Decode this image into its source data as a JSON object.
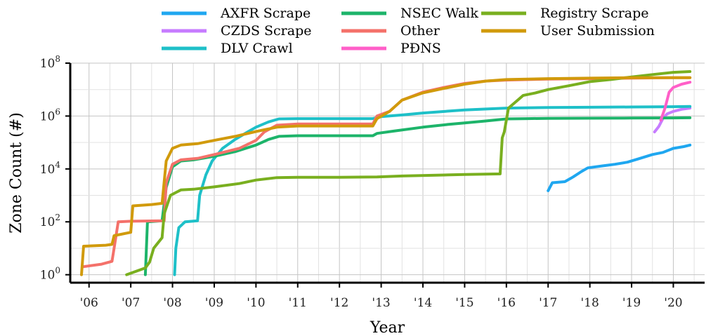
{
  "chart_data": {
    "type": "line",
    "title": "",
    "xlabel": "Year",
    "ylabel": "Zone Count (#)",
    "yscale": "log",
    "ylim": [
      0.5,
      100000000
    ],
    "xlim": [
      2005.55,
      2020.75
    ],
    "grid": true,
    "legend_position": "top",
    "x_ticks": [
      {
        "value": 2006,
        "label": "'06"
      },
      {
        "value": 2007,
        "label": "'07"
      },
      {
        "value": 2008,
        "label": "'08"
      },
      {
        "value": 2009,
        "label": "'09"
      },
      {
        "value": 2010,
        "label": "'10"
      },
      {
        "value": 2011,
        "label": "'11"
      },
      {
        "value": 2012,
        "label": "'12"
      },
      {
        "value": 2013,
        "label": "'13"
      },
      {
        "value": 2014,
        "label": "'14"
      },
      {
        "value": 2015,
        "label": "'15"
      },
      {
        "value": 2016,
        "label": "'16"
      },
      {
        "value": 2017,
        "label": "'17"
      },
      {
        "value": 2018,
        "label": "'18"
      },
      {
        "value": 2019,
        "label": "'19"
      },
      {
        "value": 2020,
        "label": "'20"
      }
    ],
    "y_ticks": [
      {
        "value": 1,
        "base": "10",
        "exp": "0"
      },
      {
        "value": 100,
        "base": "10",
        "exp": "2"
      },
      {
        "value": 10000,
        "base": "10",
        "exp": "4"
      },
      {
        "value": 1000000,
        "base": "10",
        "exp": "6"
      },
      {
        "value": 100000000,
        "base": "10",
        "exp": "8"
      }
    ],
    "series": [
      {
        "name": "AXFR Scrape",
        "color": "#1fa7f0",
        "points": [
          [
            2017.0,
            1500
          ],
          [
            2017.1,
            3000
          ],
          [
            2017.4,
            3300
          ],
          [
            2017.6,
            5000
          ],
          [
            2017.8,
            8000
          ],
          [
            2017.95,
            11000
          ],
          [
            2018.3,
            13000
          ],
          [
            2018.6,
            15000
          ],
          [
            2018.9,
            18000
          ],
          [
            2019.2,
            25000
          ],
          [
            2019.5,
            35000
          ],
          [
            2019.75,
            42000
          ],
          [
            2020.0,
            60000
          ],
          [
            2020.25,
            70000
          ],
          [
            2020.4,
            80000
          ]
        ]
      },
      {
        "name": "CZDS Scrape",
        "color": "#c77cff",
        "points": [
          [
            2019.55,
            250000
          ],
          [
            2019.65,
            400000
          ],
          [
            2019.75,
            800000
          ],
          [
            2019.85,
            1200000
          ],
          [
            2020.0,
            1500000
          ],
          [
            2020.2,
            1800000
          ],
          [
            2020.4,
            2000000
          ]
        ]
      },
      {
        "name": "DLV Crawl",
        "color": "#1ec0c8",
        "points": [
          [
            2008.05,
            1
          ],
          [
            2008.08,
            10
          ],
          [
            2008.15,
            60
          ],
          [
            2008.3,
            100
          ],
          [
            2008.6,
            110
          ],
          [
            2008.65,
            1000
          ],
          [
            2008.8,
            6000
          ],
          [
            2008.95,
            20000
          ],
          [
            2009.2,
            60000
          ],
          [
            2009.5,
            130000
          ],
          [
            2009.8,
            250000
          ],
          [
            2010.0,
            380000
          ],
          [
            2010.3,
            600000
          ],
          [
            2010.55,
            780000
          ],
          [
            2011.0,
            800000
          ],
          [
            2012.0,
            800000
          ],
          [
            2012.8,
            800000
          ],
          [
            2013.0,
            950000
          ],
          [
            2013.5,
            1100000
          ],
          [
            2014.0,
            1300000
          ],
          [
            2015.0,
            1700000
          ],
          [
            2016.0,
            2000000
          ],
          [
            2017.0,
            2100000
          ],
          [
            2018.0,
            2150000
          ],
          [
            2019.0,
            2200000
          ],
          [
            2020.0,
            2250000
          ],
          [
            2020.4,
            2300000
          ]
        ]
      },
      {
        "name": "NSEC Walk",
        "color": "#1db46a",
        "points": [
          [
            2007.35,
            1
          ],
          [
            2007.4,
            100
          ],
          [
            2007.75,
            110
          ],
          [
            2007.85,
            2000
          ],
          [
            2008.0,
            12000
          ],
          [
            2008.2,
            20000
          ],
          [
            2008.5,
            22000
          ],
          [
            2009.0,
            30000
          ],
          [
            2009.5,
            45000
          ],
          [
            2010.0,
            80000
          ],
          [
            2010.3,
            130000
          ],
          [
            2010.55,
            170000
          ],
          [
            2011.0,
            180000
          ],
          [
            2012.0,
            180000
          ],
          [
            2012.8,
            180000
          ],
          [
            2012.9,
            220000
          ],
          [
            2013.3,
            270000
          ],
          [
            2014.0,
            380000
          ],
          [
            2014.6,
            480000
          ],
          [
            2015.0,
            550000
          ],
          [
            2015.5,
            650000
          ],
          [
            2016.0,
            780000
          ],
          [
            2016.5,
            800000
          ],
          [
            2017.0,
            820000
          ],
          [
            2018.0,
            830000
          ],
          [
            2019.0,
            840000
          ],
          [
            2020.0,
            850000
          ],
          [
            2020.4,
            860000
          ]
        ]
      },
      {
        "name": "Other",
        "color": "#f4716a",
        "points": [
          [
            2005.85,
            2
          ],
          [
            2006.3,
            2.5
          ],
          [
            2006.55,
            3.2
          ],
          [
            2006.6,
            10
          ],
          [
            2006.7,
            100
          ],
          [
            2007.0,
            105
          ],
          [
            2007.8,
            110
          ],
          [
            2007.85,
            3000
          ],
          [
            2008.0,
            15000
          ],
          [
            2008.2,
            22000
          ],
          [
            2008.6,
            25000
          ],
          [
            2009.0,
            35000
          ],
          [
            2009.6,
            60000
          ],
          [
            2010.0,
            120000
          ],
          [
            2010.2,
            250000
          ],
          [
            2010.5,
            450000
          ],
          [
            2011.0,
            500000
          ],
          [
            2012.0,
            500000
          ],
          [
            2012.8,
            500000
          ],
          [
            2012.9,
            1000000
          ],
          [
            2013.2,
            1500000
          ],
          [
            2013.5,
            4000000
          ],
          [
            2014.0,
            8000000
          ],
          [
            2014.5,
            12000000
          ],
          [
            2015.0,
            17000000
          ],
          [
            2015.5,
            21000000
          ],
          [
            2016.0,
            23000000
          ],
          [
            2017.0,
            25000000
          ],
          [
            2018.0,
            26000000
          ],
          [
            2019.0,
            27000000
          ],
          [
            2020.0,
            28000000
          ],
          [
            2020.4,
            28000000
          ]
        ]
      },
      {
        "name": "PĐNS",
        "color": "#ff5fc8",
        "points": [
          [
            2019.7,
            700000
          ],
          [
            2019.8,
            2000000
          ],
          [
            2019.9,
            8000000
          ],
          [
            2020.0,
            12000000
          ],
          [
            2020.2,
            16000000
          ],
          [
            2020.4,
            19000000
          ]
        ]
      },
      {
        "name": "Registry Scrape",
        "color": "#79af1f",
        "points": [
          [
            2006.9,
            1
          ],
          [
            2007.35,
            1.8
          ],
          [
            2007.45,
            3
          ],
          [
            2007.55,
            10
          ],
          [
            2007.75,
            25
          ],
          [
            2007.8,
            200
          ],
          [
            2007.95,
            1000
          ],
          [
            2008.2,
            1600
          ],
          [
            2008.5,
            1700
          ],
          [
            2009.0,
            2100
          ],
          [
            2009.6,
            2800
          ],
          [
            2010.0,
            3800
          ],
          [
            2010.5,
            4700
          ],
          [
            2011.0,
            4800
          ],
          [
            2012.0,
            4800
          ],
          [
            2012.9,
            5000
          ],
          [
            2013.5,
            5400
          ],
          [
            2014.5,
            5900
          ],
          [
            2015.0,
            6200
          ],
          [
            2015.85,
            6500
          ],
          [
            2015.9,
            150000
          ],
          [
            2015.95,
            250000
          ],
          [
            2016.05,
            2000000
          ],
          [
            2016.4,
            6000000
          ],
          [
            2016.7,
            7500000
          ],
          [
            2017.0,
            10000000
          ],
          [
            2017.5,
            14000000
          ],
          [
            2018.0,
            20000000
          ],
          [
            2018.5,
            24000000
          ],
          [
            2019.0,
            30000000
          ],
          [
            2019.5,
            37000000
          ],
          [
            2020.0,
            45000000
          ],
          [
            2020.4,
            48000000
          ]
        ]
      },
      {
        "name": "User Submission",
        "color": "#d19a0b",
        "points": [
          [
            2005.82,
            1
          ],
          [
            2005.87,
            12
          ],
          [
            2006.4,
            13
          ],
          [
            2006.55,
            14
          ],
          [
            2006.6,
            30
          ],
          [
            2007.0,
            40
          ],
          [
            2007.05,
            400
          ],
          [
            2007.5,
            450
          ],
          [
            2007.75,
            500
          ],
          [
            2007.85,
            20000
          ],
          [
            2008.0,
            60000
          ],
          [
            2008.2,
            80000
          ],
          [
            2008.6,
            90000
          ],
          [
            2009.0,
            120000
          ],
          [
            2009.5,
            170000
          ],
          [
            2010.0,
            260000
          ],
          [
            2010.5,
            380000
          ],
          [
            2011.0,
            420000
          ],
          [
            2012.0,
            420000
          ],
          [
            2012.8,
            420000
          ],
          [
            2012.9,
            800000
          ],
          [
            2013.2,
            1500000
          ],
          [
            2013.5,
            4000000
          ],
          [
            2014.0,
            7500000
          ],
          [
            2014.5,
            11000000
          ],
          [
            2015.0,
            16000000
          ],
          [
            2015.5,
            21000000
          ],
          [
            2016.0,
            24000000
          ],
          [
            2017.0,
            26000000
          ],
          [
            2018.0,
            27000000
          ],
          [
            2019.0,
            28000000
          ],
          [
            2020.0,
            28000000
          ],
          [
            2020.4,
            28000000
          ]
        ]
      }
    ]
  }
}
